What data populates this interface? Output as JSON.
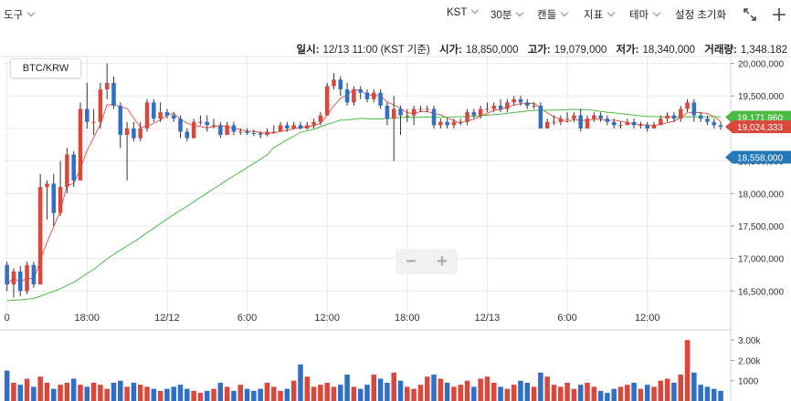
{
  "toolbar": {
    "tools": "도구",
    "timezone": "KST",
    "interval": "30분",
    "chart_type": "캔들",
    "indicators": "지표",
    "theme": "테마",
    "settings_reset": "설정 초기화"
  },
  "info": {
    "date_label": "일시:",
    "date_value": "12/13 11:00 (KST 기준)",
    "open_label": "시가:",
    "open_value": "18,850,000",
    "high_label": "고가:",
    "high_value": "19,079,000",
    "low_label": "저가:",
    "low_value": "18,340,000",
    "volume_label": "거래량:",
    "volume_value": "1,348.182"
  },
  "symbol": "BTC/KRW",
  "zoom": {
    "minus": "−",
    "plus": "+"
  },
  "colors": {
    "up": "#d9483b",
    "down": "#2f6fc6",
    "ma_short": "#e05a4f",
    "ma_long": "#4cbb44",
    "price_tag_blue": "#2579b8",
    "grid": "#e8e8e8"
  },
  "price_tags": [
    {
      "label": "19,171,960",
      "value": 19171960,
      "color": "#4cbb44"
    },
    {
      "label": "19,024,333",
      "value": 19024333,
      "color": "#d9483b"
    },
    {
      "label": "18,558,000",
      "value": 18558000,
      "color": "#2579b8"
    }
  ],
  "chart_data": {
    "type": "candlestick",
    "y_axis": {
      "min": 16350000,
      "max": 20050000,
      "ticks": [
        16500000,
        17000000,
        17500000,
        18000000,
        18500000,
        19000000,
        19500000,
        20000000
      ],
      "tick_labels": [
        "16,500,000",
        "17,000,000",
        "17,500,000",
        "18,000,000",
        "18,500,000",
        "19,000,000",
        "19,500,000",
        "20,000,000"
      ]
    },
    "x_axis": {
      "tick_labels": [
        "0",
        "18:00",
        "12/12",
        "6:00",
        "12:00",
        "18:00",
        "12/13",
        "6:00",
        "12:00"
      ],
      "tick_index": [
        0,
        12,
        24,
        36,
        48,
        60,
        72,
        84,
        96
      ]
    },
    "volume_axis": {
      "max": 3500,
      "tick_labels": [
        "3.00k",
        "2.00k",
        "1000"
      ],
      "ticks": [
        3000,
        2000,
        1000
      ]
    },
    "candles": [
      [
        16900000,
        16600000,
        16950000,
        16500000,
        1500
      ],
      [
        16600000,
        16800000,
        16850000,
        16400000,
        900
      ],
      [
        16800000,
        16500000,
        16880000,
        16420000,
        800
      ],
      [
        16500000,
        16900000,
        16950000,
        16450000,
        1100
      ],
      [
        16900000,
        16600000,
        16950000,
        16550000,
        700
      ],
      [
        16600000,
        18100000,
        18300000,
        16600000,
        1200
      ],
      [
        18100000,
        18150000,
        18200000,
        17600000,
        900
      ],
      [
        18150000,
        17700000,
        18300000,
        17500000,
        600
      ],
      [
        17700000,
        18100000,
        18500000,
        17650000,
        800
      ],
      [
        18100000,
        18600000,
        18700000,
        18000000,
        900
      ],
      [
        18600000,
        18200000,
        18650000,
        18100000,
        1100
      ],
      [
        18200000,
        19300000,
        19400000,
        18200000,
        800
      ],
      [
        19300000,
        19100000,
        19700000,
        19000000,
        700
      ],
      [
        19100000,
        19100000,
        19300000,
        18900000,
        900
      ],
      [
        19100000,
        19600000,
        19700000,
        19000000,
        800
      ],
      [
        19600000,
        19700000,
        20000000,
        19450000,
        600
      ],
      [
        19700000,
        19350000,
        19800000,
        19300000,
        900
      ],
      [
        19350000,
        18900000,
        19400000,
        18700000,
        1000
      ],
      [
        18900000,
        19000000,
        19100000,
        18200000,
        700
      ],
      [
        19000000,
        18850000,
        19100000,
        18800000,
        900
      ],
      [
        18850000,
        19000000,
        19100000,
        18800000,
        800
      ],
      [
        19000000,
        19400000,
        19450000,
        18950000,
        700
      ],
      [
        19400000,
        19150000,
        19450000,
        19100000,
        600
      ],
      [
        19150000,
        19250000,
        19400000,
        19100000,
        500
      ],
      [
        19250000,
        19200000,
        19300000,
        19150000,
        600
      ],
      [
        19200000,
        19150000,
        19250000,
        19100000,
        700
      ],
      [
        19150000,
        18950000,
        19200000,
        18850000,
        800
      ],
      [
        18950000,
        18850000,
        19000000,
        18800000,
        600
      ],
      [
        18850000,
        19100000,
        19150000,
        18850000,
        500
      ],
      [
        19100000,
        19100000,
        19200000,
        19050000,
        400
      ],
      [
        19100000,
        19050000,
        19200000,
        18950000,
        500
      ],
      [
        19050000,
        19050000,
        19150000,
        19000000,
        600
      ],
      [
        19050000,
        18900000,
        19100000,
        18850000,
        900
      ],
      [
        18900000,
        19050000,
        19100000,
        18900000,
        700
      ],
      [
        19050000,
        18950000,
        19100000,
        18900000,
        500
      ],
      [
        18950000,
        18950000,
        19000000,
        18900000,
        800
      ],
      [
        18950000,
        18930000,
        19000000,
        18900000,
        600
      ],
      [
        18930000,
        18920000,
        18980000,
        18880000,
        500
      ],
      [
        18920000,
        18900000,
        18960000,
        18850000,
        600
      ],
      [
        18900000,
        18950000,
        19000000,
        18880000,
        900
      ],
      [
        18950000,
        18950000,
        19050000,
        18920000,
        700
      ],
      [
        18950000,
        19050000,
        19100000,
        18950000,
        500
      ],
      [
        19050000,
        19000000,
        19100000,
        18950000,
        600
      ],
      [
        19000000,
        19050000,
        19100000,
        18980000,
        1000
      ],
      [
        19050000,
        19000000,
        19100000,
        18980000,
        1800
      ],
      [
        19000000,
        19050000,
        19100000,
        18980000,
        1200
      ],
      [
        19050000,
        19100000,
        19150000,
        19000000,
        700
      ],
      [
        19100000,
        19200000,
        19250000,
        19050000,
        800
      ],
      [
        19200000,
        19650000,
        19700000,
        19200000,
        900
      ],
      [
        19650000,
        19750000,
        19850000,
        19600000,
        700
      ],
      [
        19750000,
        19600000,
        19800000,
        19500000,
        800
      ],
      [
        19600000,
        19400000,
        19700000,
        19350000,
        1300
      ],
      [
        19400000,
        19600000,
        19650000,
        19350000,
        700
      ],
      [
        19600000,
        19550000,
        19650000,
        19450000,
        600
      ],
      [
        19550000,
        19450000,
        19600000,
        19400000,
        800
      ],
      [
        19450000,
        19550000,
        19600000,
        19400000,
        1300
      ],
      [
        19550000,
        19350000,
        19600000,
        19300000,
        1100
      ],
      [
        19350000,
        19150000,
        19400000,
        19050000,
        900
      ],
      [
        19150000,
        19300000,
        19500000,
        18500000,
        1400
      ],
      [
        19300000,
        19200000,
        19350000,
        18900000,
        1000
      ],
      [
        19200000,
        19200000,
        19300000,
        19100000,
        700
      ],
      [
        19200000,
        19300000,
        19350000,
        19050000,
        600
      ],
      [
        19300000,
        19300000,
        19350000,
        19250000,
        800
      ],
      [
        19300000,
        19300000,
        19350000,
        19250000,
        1200
      ],
      [
        19300000,
        19050000,
        19350000,
        19000000,
        1300
      ],
      [
        19050000,
        19100000,
        19150000,
        19000000,
        1100
      ],
      [
        19100000,
        19050000,
        19150000,
        19000000,
        900
      ],
      [
        19050000,
        19100000,
        19150000,
        19000000,
        700
      ],
      [
        19100000,
        19100000,
        19150000,
        19050000,
        800
      ],
      [
        19100000,
        19250000,
        19300000,
        19050000,
        1000
      ],
      [
        19250000,
        19200000,
        19300000,
        19150000,
        700
      ],
      [
        19200000,
        19300000,
        19350000,
        19150000,
        1100
      ],
      [
        19300000,
        19300000,
        19400000,
        19250000,
        1200
      ],
      [
        19300000,
        19350000,
        19400000,
        19250000,
        900
      ],
      [
        19350000,
        19300000,
        19450000,
        19250000,
        700
      ],
      [
        19300000,
        19400000,
        19450000,
        19250000,
        600
      ],
      [
        19400000,
        19450000,
        19500000,
        19350000,
        800
      ],
      [
        19450000,
        19400000,
        19500000,
        19350000,
        1000
      ],
      [
        19400000,
        19350000,
        19450000,
        19300000,
        900
      ],
      [
        19350000,
        19350000,
        19400000,
        19300000,
        700
      ],
      [
        19350000,
        19000000,
        19400000,
        19000000,
        1400
      ],
      [
        19000000,
        19100000,
        19150000,
        19000000,
        1200
      ],
      [
        19100000,
        19100000,
        19200000,
        19050000,
        800
      ],
      [
        19100000,
        19150000,
        19200000,
        19050000,
        700
      ],
      [
        19150000,
        19150000,
        19250000,
        19100000,
        900
      ],
      [
        19150000,
        19200000,
        19250000,
        19100000,
        600
      ],
      [
        19200000,
        19000000,
        19300000,
        18950000,
        800
      ],
      [
        19000000,
        19150000,
        19200000,
        19000000,
        900
      ],
      [
        19150000,
        19200000,
        19250000,
        19100000,
        700
      ],
      [
        19200000,
        19150000,
        19250000,
        19100000,
        500
      ],
      [
        19150000,
        19100000,
        19200000,
        19050000,
        400
      ],
      [
        19100000,
        19050000,
        19150000,
        19000000,
        600
      ],
      [
        19050000,
        19050000,
        19100000,
        19000000,
        700
      ],
      [
        19050000,
        19100000,
        19150000,
        19050000,
        800
      ],
      [
        19100000,
        19050000,
        19150000,
        19000000,
        900
      ],
      [
        19050000,
        19050000,
        19100000,
        19000000,
        600
      ],
      [
        19050000,
        19000000,
        19100000,
        18950000,
        800
      ],
      [
        19000000,
        19050000,
        19100000,
        19000000,
        700
      ],
      [
        19050000,
        19150000,
        19200000,
        19050000,
        1000
      ],
      [
        19150000,
        19200000,
        19250000,
        19100000,
        1100
      ],
      [
        19200000,
        19150000,
        19250000,
        19100000,
        900
      ],
      [
        19150000,
        19300000,
        19350000,
        19100000,
        1300
      ],
      [
        19300000,
        19400000,
        19450000,
        19250000,
        3000
      ],
      [
        19400000,
        19200000,
        19450000,
        19100000,
        1400
      ],
      [
        19200000,
        19150000,
        19250000,
        19100000,
        800
      ],
      [
        19150000,
        19100000,
        19200000,
        19050000,
        700
      ],
      [
        19100000,
        19050000,
        19150000,
        19000000,
        600
      ],
      [
        19050000,
        19024333,
        19100000,
        18980000,
        500
      ]
    ]
  }
}
